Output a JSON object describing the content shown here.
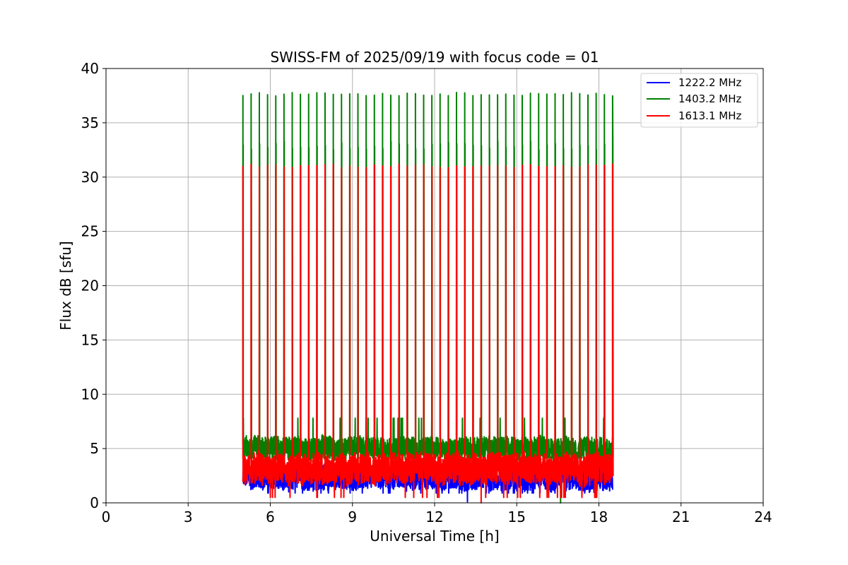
{
  "chart_data": {
    "type": "line",
    "title": "SWISS-FM of 2025/09/19 with focus code = 01",
    "xlabel": "Universal Time [h]",
    "ylabel": "Flux dB [sfu]",
    "xlim": [
      0,
      24
    ],
    "ylim": [
      0,
      40
    ],
    "xticks": [
      0,
      3,
      6,
      9,
      12,
      15,
      18,
      21,
      24
    ],
    "yticks": [
      0,
      5,
      10,
      15,
      20,
      25,
      30,
      35,
      40
    ],
    "grid": true,
    "legend_position": "top-right",
    "observation_window": [
      5.0,
      18.5
    ],
    "calibration_spike_period_h": 0.3,
    "calibration_spike_count": 45,
    "series": [
      {
        "name": "1222.2 MHz",
        "color": "#0000ff",
        "baseline_mean": 2.4,
        "baseline_range": [
          0.7,
          6.3
        ],
        "spike_peak": null,
        "notable_dip": {
          "x": 13.2,
          "y": 0.1
        }
      },
      {
        "name": "1403.2 MHz",
        "color": "#008000",
        "baseline_mean": 5.0,
        "baseline_range": [
          3.5,
          7.8
        ],
        "spike_peak": 37.8,
        "notable_dip": {
          "x": 16.6,
          "y": 0.0
        }
      },
      {
        "name": "1613.1 MHz",
        "color": "#ff0000",
        "baseline_mean": 3.2,
        "baseline_range": [
          0.3,
          5.2
        ],
        "spike_peak": 31.2,
        "notable_dip": {
          "x": 13.7,
          "y": 0.0
        }
      }
    ]
  }
}
